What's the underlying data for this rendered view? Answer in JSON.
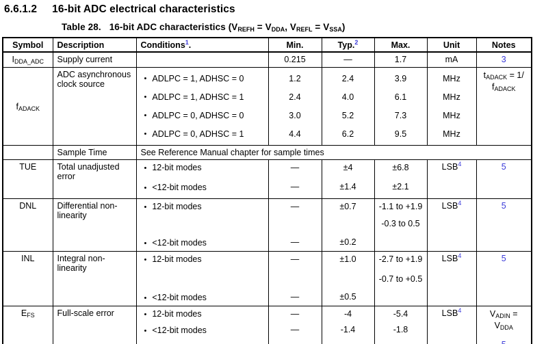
{
  "colors": {
    "note_blue": "#3a3ad9"
  },
  "bullet": "•",
  "heading": {
    "number": "6.6.1.2",
    "title": "16-bit ADC electrical characteristics"
  },
  "caption": {
    "prefix": "Table 28.",
    "t1": "16-bit ADC characteristics (V",
    "s1": "REFH",
    "t2": " = V",
    "s2": "DDA",
    "t3": ", V",
    "s3": "REFL",
    "t4": " = V",
    "s4": "SSA",
    "t5": ")"
  },
  "header": {
    "symbol": "Symbol",
    "description": "Description",
    "conditions": "Conditions",
    "conditions_sup": "1",
    "conditions_dot": ".",
    "min": "Min.",
    "typ": "Typ.",
    "typ_sup": "2",
    "max": "Max.",
    "unit": "Unit",
    "notes": "Notes"
  },
  "rows": {
    "idda": {
      "symbol_base": "I",
      "symbol_sub": "DDA_ADC",
      "description": "Supply current",
      "conditions": "",
      "min": "0.215",
      "typ": "—",
      "max": "1.7",
      "unit": "mA",
      "note": "3"
    },
    "fadack": {
      "symbol_base": "f",
      "symbol_sub": "ADACK",
      "description": "ADC asynchronous clock source",
      "conditions": [
        "ADLPC = 1, ADHSC = 0",
        "ADLPC = 1, ADHSC = 1",
        "ADLPC = 0, ADHSC = 0",
        "ADLPC = 0, ADHSC = 1"
      ],
      "min": [
        "1.2",
        "2.4",
        "3.0",
        "4.4"
      ],
      "typ": [
        "2.4",
        "4.0",
        "5.2",
        "6.2"
      ],
      "max": [
        "3.9",
        "6.1",
        "7.3",
        "9.5"
      ],
      "unit": [
        "MHz",
        "MHz",
        "MHz",
        "MHz"
      ],
      "note_l1a": "t",
      "note_l1sub": "ADACK",
      "note_l1b": " = 1/",
      "note_l2a": "f",
      "note_l2sub": "ADACK"
    },
    "sample": {
      "description": "Sample Time",
      "text": "See Reference Manual chapter for sample times"
    },
    "tue": {
      "symbol": "TUE",
      "description": "Total unadjusted error",
      "cond1": "12-bit modes",
      "cond2": "<12-bit modes",
      "min1": "—",
      "min2": "—",
      "typ1": "±4",
      "typ2": "±1.4",
      "max1": "±6.8",
      "max2": "±2.1",
      "unit_base": "LSB",
      "unit_sup": "4",
      "note": "5"
    },
    "dnl": {
      "symbol": "DNL",
      "description": "Differential non-linearity",
      "cond1": "12-bit modes",
      "cond2": "<12-bit modes",
      "min1": "—",
      "min2": "—",
      "typ1": "±0.7",
      "typ2": "±0.2",
      "max1a": "-1.1 to +1.9",
      "max1b": "-0.3 to 0.5",
      "unit_base": "LSB",
      "unit_sup": "4",
      "note": "5"
    },
    "inl": {
      "symbol": "INL",
      "description": "Integral non-linearity",
      "cond1": "12-bit modes",
      "cond2": "<12-bit modes",
      "min1": "—",
      "min2": "—",
      "typ1": "±1.0",
      "typ2": "±0.5",
      "max1a": "-2.7 to +1.9",
      "max1b": "-0.7 to +0.5",
      "unit_base": "LSB",
      "unit_sup": "4",
      "note": "5"
    },
    "efs": {
      "symbol_base": "E",
      "symbol_sub": "FS",
      "description": "Full-scale error",
      "cond1": "12-bit modes",
      "cond2": "<12-bit modes",
      "min1": "—",
      "min2": "—",
      "typ1": "-4",
      "typ2": "-1.4",
      "max1": "-5.4",
      "max2": "-1.8",
      "unit_base": "LSB",
      "unit_sup": "4",
      "note_l1a": "V",
      "note_l1sub": "ADIN",
      "note_l1b": " =",
      "note_l2a": "V",
      "note_l2sub": "DDA",
      "note2": "5"
    }
  }
}
